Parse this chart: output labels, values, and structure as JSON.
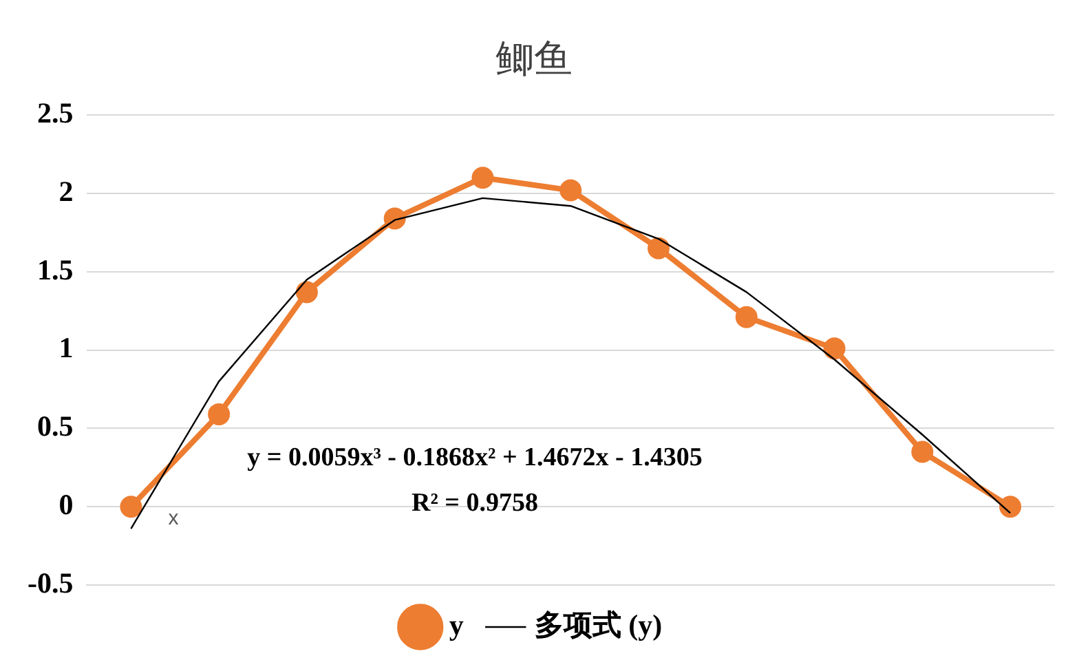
{
  "chart_data": {
    "type": "line",
    "title": "鲫鱼",
    "categories": [
      null,
      null,
      null,
      null,
      null,
      null,
      null,
      null,
      null,
      null,
      null
    ],
    "ylim": [
      -0.5,
      2.5
    ],
    "yticks": [
      -0.5,
      0,
      0.5,
      1,
      1.5,
      2,
      2.5
    ],
    "tick_labels": "y",
    "grid": "y",
    "legend": "bottom",
    "marker": "circle",
    "series": [
      {
        "name": "y",
        "color": "#ed7d31",
        "values": [
          0,
          0.59,
          1.37,
          1.84,
          2.1,
          2.02,
          1.65,
          1.21,
          1.01,
          0.35,
          0
        ]
      },
      {
        "name": "多项式 (y)",
        "color": "#000000",
        "type": "line",
        "marker": "none",
        "values": [
          -0.14,
          0.8,
          1.45,
          1.83,
          1.97,
          1.92,
          1.71,
          1.37,
          0.94,
          0.46,
          -0.04
        ]
      }
    ],
    "annotations": [
      "y = 0.0059x³ - 0.1868x² + 1.4672x - 1.4305",
      "R² = 0.9758",
      "x"
    ]
  }
}
